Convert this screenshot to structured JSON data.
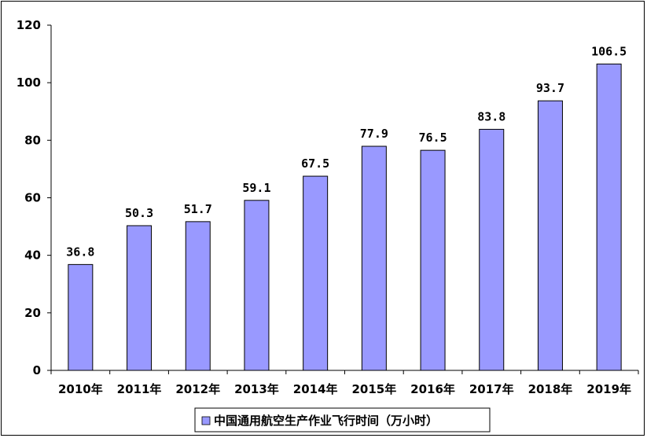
{
  "chart_data": {
    "type": "bar",
    "categories": [
      "2010年",
      "2011年",
      "2012年",
      "2013年",
      "2014年",
      "2015年",
      "2016年",
      "2017年",
      "2018年",
      "2019年"
    ],
    "series": [
      {
        "name": "中国通用航空生产作业飞行时间（万小时）",
        "values": [
          36.8,
          50.3,
          51.7,
          59.1,
          67.5,
          77.9,
          76.5,
          83.8,
          93.7,
          106.5
        ],
        "color": "#9999ff"
      }
    ],
    "data_labels": [
      "36.8",
      "50.3",
      "51.7",
      "59.1",
      "67.5",
      "77.9",
      "76.5",
      "83.8",
      "93.7",
      "106.5"
    ],
    "ylim": [
      0,
      120
    ],
    "yticks": [
      0,
      20,
      40,
      60,
      80,
      100,
      120
    ],
    "grid": false,
    "legend_position": "bottom"
  }
}
